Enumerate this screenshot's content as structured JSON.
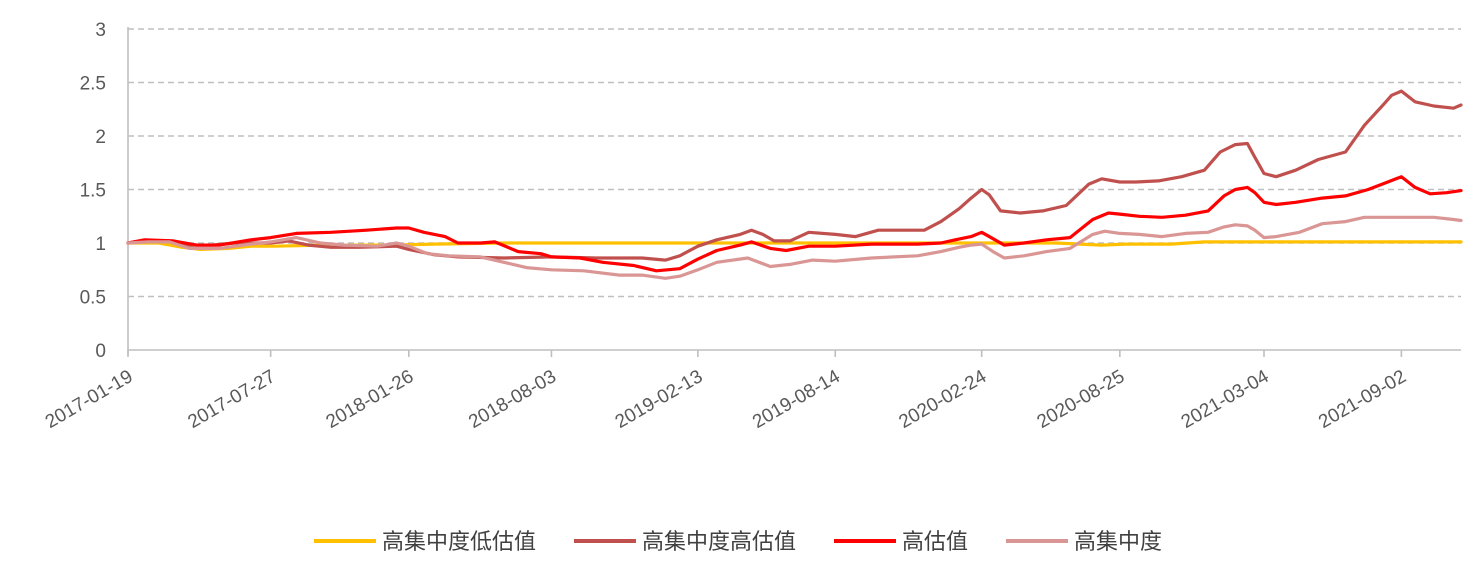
{
  "chart_data": {
    "type": "line",
    "x_tick_labels": [
      "2017-01-19",
      "2017-07-27",
      "2018-01-26",
      "2018-08-03",
      "2019-02-13",
      "2019-08-14",
      "2020-02-24",
      "2020-08-25",
      "2021-03-04",
      "2021-09-02"
    ],
    "x_range": [
      "2017-01-19",
      "2021-11-20"
    ],
    "y_tick_labels": [
      "0",
      "0.5",
      "1",
      "1.5",
      "2",
      "2.5",
      "3"
    ],
    "ylim": [
      0,
      3
    ],
    "grid": "horizontal dashed",
    "legend_position": "bottom",
    "series": [
      {
        "name": "高集中度低估值",
        "color": "#ffc000",
        "points": [
          [
            "2017-01-19",
            1.0
          ],
          [
            "2017-03-01",
            1.0
          ],
          [
            "2017-04-01",
            0.96
          ],
          [
            "2017-04-25",
            0.94
          ],
          [
            "2017-06-01",
            0.95
          ],
          [
            "2017-07-01",
            0.97
          ],
          [
            "2017-08-01",
            0.97
          ],
          [
            "2017-10-01",
            0.98
          ],
          [
            "2018-01-01",
            0.98
          ],
          [
            "2018-03-01",
            0.99
          ],
          [
            "2018-06-01",
            1.0
          ],
          [
            "2019-01-01",
            1.0
          ],
          [
            "2019-06-01",
            1.0
          ],
          [
            "2020-01-01",
            1.0
          ],
          [
            "2020-06-01",
            1.0
          ],
          [
            "2020-08-01",
            0.98
          ],
          [
            "2020-09-01",
            0.99
          ],
          [
            "2020-11-01",
            0.99
          ],
          [
            "2020-12-15",
            1.01
          ],
          [
            "2021-01-01",
            1.01
          ],
          [
            "2021-06-01",
            1.01
          ],
          [
            "2021-11-20",
            1.01
          ]
        ]
      },
      {
        "name": "高集中度高估值",
        "color": "#c0504d",
        "points": [
          [
            "2017-01-19",
            1.0
          ],
          [
            "2017-02-15",
            1.02
          ],
          [
            "2017-03-15",
            1.02
          ],
          [
            "2017-04-10",
            0.98
          ],
          [
            "2017-05-10",
            0.98
          ],
          [
            "2017-06-10",
            1.0
          ],
          [
            "2017-07-27",
            1.0
          ],
          [
            "2017-08-20",
            1.02
          ],
          [
            "2017-09-15",
            0.98
          ],
          [
            "2017-10-15",
            0.96
          ],
          [
            "2017-11-20",
            0.96
          ],
          [
            "2018-01-10",
            0.97
          ],
          [
            "2018-01-26",
            0.94
          ],
          [
            "2018-03-01",
            0.89
          ],
          [
            "2018-04-01",
            0.87
          ],
          [
            "2018-06-01",
            0.86
          ],
          [
            "2018-08-03",
            0.87
          ],
          [
            "2018-10-01",
            0.86
          ],
          [
            "2018-12-01",
            0.86
          ],
          [
            "2019-01-01",
            0.84
          ],
          [
            "2019-01-20",
            0.88
          ],
          [
            "2019-02-13",
            0.97
          ],
          [
            "2019-03-10",
            1.03
          ],
          [
            "2019-04-10",
            1.08
          ],
          [
            "2019-04-25",
            1.12
          ],
          [
            "2019-05-10",
            1.08
          ],
          [
            "2019-05-25",
            1.02
          ],
          [
            "2019-06-15",
            1.02
          ],
          [
            "2019-07-10",
            1.1
          ],
          [
            "2019-08-14",
            1.08
          ],
          [
            "2019-09-10",
            1.06
          ],
          [
            "2019-10-10",
            1.12
          ],
          [
            "2019-11-10",
            1.12
          ],
          [
            "2019-12-10",
            1.12
          ],
          [
            "2020-01-01",
            1.2
          ],
          [
            "2020-01-25",
            1.32
          ],
          [
            "2020-02-10",
            1.42
          ],
          [
            "2020-02-24",
            1.5
          ],
          [
            "2020-03-05",
            1.45
          ],
          [
            "2020-03-20",
            1.3
          ],
          [
            "2020-04-15",
            1.28
          ],
          [
            "2020-05-15",
            1.3
          ],
          [
            "2020-06-15",
            1.35
          ],
          [
            "2020-07-15",
            1.55
          ],
          [
            "2020-08-01",
            1.6
          ],
          [
            "2020-08-25",
            1.57
          ],
          [
            "2020-09-15",
            1.57
          ],
          [
            "2020-10-15",
            1.58
          ],
          [
            "2020-11-15",
            1.62
          ],
          [
            "2020-12-15",
            1.68
          ],
          [
            "2021-01-05",
            1.85
          ],
          [
            "2021-01-25",
            1.92
          ],
          [
            "2021-02-10",
            1.93
          ],
          [
            "2021-02-20",
            1.8
          ],
          [
            "2021-03-04",
            1.65
          ],
          [
            "2021-03-20",
            1.62
          ],
          [
            "2021-04-15",
            1.68
          ],
          [
            "2021-05-15",
            1.78
          ],
          [
            "2021-06-20",
            1.85
          ],
          [
            "2021-07-15",
            2.1
          ],
          [
            "2021-08-10",
            2.3
          ],
          [
            "2021-08-20",
            2.38
          ],
          [
            "2021-09-02",
            2.42
          ],
          [
            "2021-09-20",
            2.32
          ],
          [
            "2021-10-15",
            2.28
          ],
          [
            "2021-11-10",
            2.26
          ],
          [
            "2021-11-20",
            2.29
          ]
        ]
      },
      {
        "name": "高估值",
        "color": "#ff0000",
        "points": [
          [
            "2017-01-19",
            1.0
          ],
          [
            "2017-02-10",
            1.03
          ],
          [
            "2017-03-20",
            1.02
          ],
          [
            "2017-04-20",
            0.98
          ],
          [
            "2017-05-20",
            0.98
          ],
          [
            "2017-07-01",
            1.03
          ],
          [
            "2017-07-27",
            1.05
          ],
          [
            "2017-08-30",
            1.09
          ],
          [
            "2017-10-15",
            1.1
          ],
          [
            "2017-12-01",
            1.12
          ],
          [
            "2018-01-10",
            1.14
          ],
          [
            "2018-01-26",
            1.14
          ],
          [
            "2018-02-15",
            1.1
          ],
          [
            "2018-03-15",
            1.06
          ],
          [
            "2018-04-01",
            1.0
          ],
          [
            "2018-05-01",
            1.0
          ],
          [
            "2018-05-20",
            1.01
          ],
          [
            "2018-06-20",
            0.92
          ],
          [
            "2018-07-20",
            0.9
          ],
          [
            "2018-08-03",
            0.87
          ],
          [
            "2018-09-10",
            0.86
          ],
          [
            "2018-10-10",
            0.82
          ],
          [
            "2018-11-20",
            0.79
          ],
          [
            "2018-12-20",
            0.74
          ],
          [
            "2019-01-20",
            0.76
          ],
          [
            "2019-02-13",
            0.85
          ],
          [
            "2019-03-10",
            0.93
          ],
          [
            "2019-04-10",
            0.98
          ],
          [
            "2019-04-25",
            1.01
          ],
          [
            "2019-05-20",
            0.95
          ],
          [
            "2019-06-10",
            0.93
          ],
          [
            "2019-07-10",
            0.97
          ],
          [
            "2019-08-14",
            0.97
          ],
          [
            "2019-10-01",
            0.99
          ],
          [
            "2019-12-01",
            0.99
          ],
          [
            "2020-01-01",
            1.0
          ],
          [
            "2020-01-20",
            1.03
          ],
          [
            "2020-02-10",
            1.06
          ],
          [
            "2020-02-24",
            1.1
          ],
          [
            "2020-03-10",
            1.04
          ],
          [
            "2020-03-25",
            0.98
          ],
          [
            "2020-04-20",
            1.0
          ],
          [
            "2020-05-20",
            1.03
          ],
          [
            "2020-06-20",
            1.05
          ],
          [
            "2020-07-20",
            1.22
          ],
          [
            "2020-08-10",
            1.28
          ],
          [
            "2020-08-25",
            1.27
          ],
          [
            "2020-09-20",
            1.25
          ],
          [
            "2020-10-20",
            1.24
          ],
          [
            "2020-11-20",
            1.26
          ],
          [
            "2020-12-20",
            1.3
          ],
          [
            "2021-01-10",
            1.44
          ],
          [
            "2021-01-25",
            1.5
          ],
          [
            "2021-02-10",
            1.52
          ],
          [
            "2021-02-20",
            1.47
          ],
          [
            "2021-03-04",
            1.38
          ],
          [
            "2021-03-20",
            1.36
          ],
          [
            "2021-04-15",
            1.38
          ],
          [
            "2021-05-20",
            1.42
          ],
          [
            "2021-06-20",
            1.44
          ],
          [
            "2021-07-20",
            1.5
          ],
          [
            "2021-08-15",
            1.57
          ],
          [
            "2021-09-02",
            1.62
          ],
          [
            "2021-09-20",
            1.52
          ],
          [
            "2021-10-10",
            1.46
          ],
          [
            "2021-11-01",
            1.47
          ],
          [
            "2021-11-20",
            1.49
          ]
        ]
      },
      {
        "name": "高集中度",
        "color": "#da9694",
        "points": [
          [
            "2017-01-19",
            1.0
          ],
          [
            "2017-02-15",
            1.01
          ],
          [
            "2017-03-15",
            1.01
          ],
          [
            "2017-04-10",
            0.95
          ],
          [
            "2017-05-20",
            0.95
          ],
          [
            "2017-07-01",
            0.99
          ],
          [
            "2017-07-27",
            1.01
          ],
          [
            "2017-08-30",
            1.05
          ],
          [
            "2017-10-01",
            1.0
          ],
          [
            "2017-11-01",
            0.98
          ],
          [
            "2017-12-15",
            0.97
          ],
          [
            "2018-01-10",
            1.0
          ],
          [
            "2018-01-26",
            0.97
          ],
          [
            "2018-02-20",
            0.9
          ],
          [
            "2018-03-20",
            0.88
          ],
          [
            "2018-05-01",
            0.87
          ],
          [
            "2018-06-01",
            0.82
          ],
          [
            "2018-07-01",
            0.77
          ],
          [
            "2018-08-03",
            0.75
          ],
          [
            "2018-09-15",
            0.74
          ],
          [
            "2018-11-01",
            0.7
          ],
          [
            "2018-12-01",
            0.7
          ],
          [
            "2019-01-01",
            0.67
          ],
          [
            "2019-01-20",
            0.69
          ],
          [
            "2019-02-13",
            0.75
          ],
          [
            "2019-03-10",
            0.82
          ],
          [
            "2019-04-20",
            0.86
          ],
          [
            "2019-05-20",
            0.78
          ],
          [
            "2019-06-15",
            0.8
          ],
          [
            "2019-07-15",
            0.84
          ],
          [
            "2019-08-14",
            0.83
          ],
          [
            "2019-10-01",
            0.86
          ],
          [
            "2019-12-01",
            0.88
          ],
          [
            "2020-01-01",
            0.92
          ],
          [
            "2020-01-25",
            0.96
          ],
          [
            "2020-02-10",
            0.98
          ],
          [
            "2020-02-24",
            0.99
          ],
          [
            "2020-03-10",
            0.92
          ],
          [
            "2020-03-25",
            0.86
          ],
          [
            "2020-04-20",
            0.88
          ],
          [
            "2020-05-20",
            0.92
          ],
          [
            "2020-06-20",
            0.95
          ],
          [
            "2020-07-20",
            1.08
          ],
          [
            "2020-08-05",
            1.11
          ],
          [
            "2020-08-25",
            1.09
          ],
          [
            "2020-09-20",
            1.08
          ],
          [
            "2020-10-20",
            1.06
          ],
          [
            "2020-11-20",
            1.09
          ],
          [
            "2020-12-20",
            1.1
          ],
          [
            "2021-01-10",
            1.15
          ],
          [
            "2021-01-25",
            1.17
          ],
          [
            "2021-02-10",
            1.16
          ],
          [
            "2021-02-20",
            1.12
          ],
          [
            "2021-03-04",
            1.05
          ],
          [
            "2021-03-20",
            1.06
          ],
          [
            "2021-04-20",
            1.1
          ],
          [
            "2021-05-20",
            1.18
          ],
          [
            "2021-06-20",
            1.2
          ],
          [
            "2021-07-15",
            1.24
          ],
          [
            "2021-09-02",
            1.24
          ],
          [
            "2021-10-15",
            1.24
          ],
          [
            "2021-11-10",
            1.22
          ],
          [
            "2021-11-20",
            1.21
          ]
        ]
      }
    ]
  }
}
